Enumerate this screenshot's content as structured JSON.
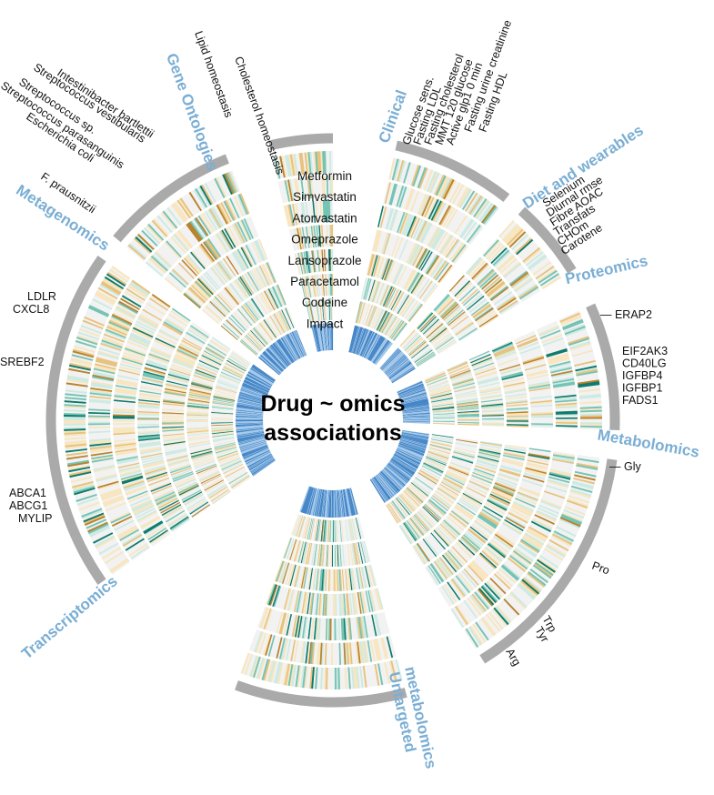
{
  "title": {
    "line1": "Drug ~ omics",
    "line2": "associations"
  },
  "drugs": [
    "Metformin",
    "Simvastatin",
    "Atorvastatin",
    "Omeprazole",
    "Lansoprazole",
    "Paracetamol",
    "Codeine",
    "Impact"
  ],
  "sections": [
    {
      "id": "gene",
      "label": "Gene Ontologies",
      "features": [
        "Cholesterol homeostasis",
        "Lipid homeostasis"
      ]
    },
    {
      "id": "clin",
      "label": "Clinical",
      "features": [
        "Glucose sens.",
        "Fasting LDL",
        "Fasting cholesterol",
        "MMT 120 glucose",
        "Active glp1 0 min",
        "Fasting urine creatinine",
        "Fasting HDL"
      ]
    },
    {
      "id": "diet",
      "label": "Diet and wearables",
      "features": [
        "Selenium",
        "Diurnal rmse",
        "Fibre AOAC",
        "Transfats",
        "CHOm",
        "Carotene"
      ]
    },
    {
      "id": "prot",
      "label": "Proteomics",
      "features": [
        "ERAP2",
        "EIF2AK3",
        "CD40LG",
        "IGFBP4",
        "IGFBP1",
        "FADS1"
      ]
    },
    {
      "id": "metab",
      "label": "Metabolomics",
      "features": [
        "Gly",
        "Pro",
        "Trp",
        "Tyr",
        "Arg"
      ]
    },
    {
      "id": "untar",
      "label": "Untargeted metabolomics",
      "label_lines": [
        "Untargeted",
        "metabolomics"
      ],
      "features": []
    },
    {
      "id": "trans",
      "label": "Transcriptomics",
      "features": [
        "LDLR",
        "CXCL8",
        "SREBF2",
        "ABCA1",
        "ABCG1",
        "MYLIP"
      ]
    },
    {
      "id": "metag",
      "label": "Metagenomics",
      "features": [
        "Intestinibacter bartlettii",
        "Streptococcus vestibularis",
        "Streptococcus sp.",
        "Streptococcus parasanguinis",
        "Escherichia coli",
        "F. prausnitzii"
      ]
    }
  ],
  "colors": {
    "ring_bg": "#f2f2f2",
    "neg_light": "#f7e6c0",
    "neg_mid": "#e8c27e",
    "neg_dark": "#b9822c",
    "pos_light": "#cdeae3",
    "pos_mid": "#74c3b3",
    "pos_dark": "#0d7a6a",
    "impact": "#3a7fc4",
    "bracket": "#aaaaaa",
    "section_label": "#7aaed4"
  }
}
